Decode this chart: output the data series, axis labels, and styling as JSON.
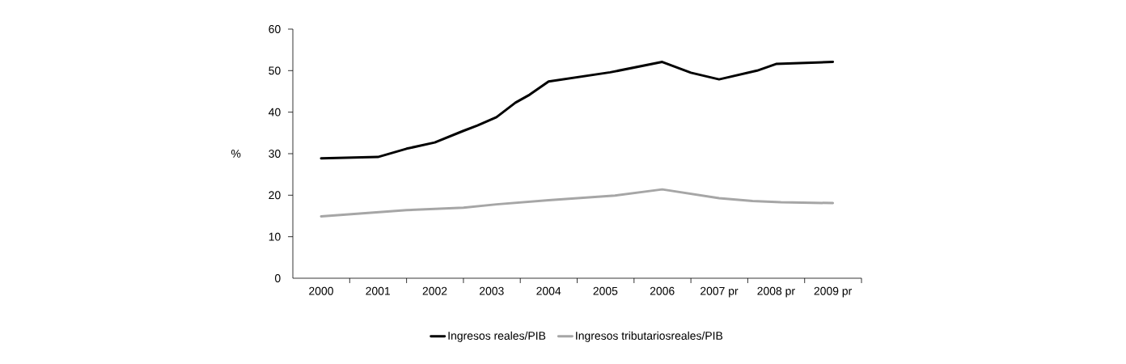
{
  "chart_data": {
    "type": "line",
    "ylabel": "%",
    "xlim": [
      "2000-01-01",
      "2010-01-01"
    ],
    "xticks": [
      {
        "value": "2000-07-01",
        "label": "2000"
      },
      {
        "value": "2001-07-01",
        "label": "2001"
      },
      {
        "value": "2002-07-01",
        "label": "2002"
      },
      {
        "value": "2003-07-01",
        "label": "2003"
      },
      {
        "value": "2004-07-01",
        "label": "2004"
      },
      {
        "value": "2005-07-01",
        "label": "2005"
      },
      {
        "value": "2006-07-01",
        "label": "2006"
      },
      {
        "value": "2007-07-01",
        "label": "2007 pr"
      },
      {
        "value": "2008-07-01",
        "label": "2008 pr"
      },
      {
        "value": "2009-07-01",
        "label": "2009 pr"
      },
      {
        "value": "2001-01-01",
        "label": null
      },
      {
        "value": "2002-01-01",
        "label": null
      },
      {
        "value": "2003-01-01",
        "label": null
      },
      {
        "value": "2004-01-01",
        "label": null
      },
      {
        "value": "2005-01-01",
        "label": null
      },
      {
        "value": "2006-01-01",
        "label": null
      },
      {
        "value": "2007-01-01",
        "label": null
      },
      {
        "value": "2008-01-01",
        "label": null
      },
      {
        "value": "2009-01-01",
        "label": null
      },
      {
        "value": "2010-01-01",
        "label": null
      }
    ],
    "ylim": [
      0,
      60
    ],
    "yticks": [
      0,
      10,
      20,
      30,
      40,
      50,
      60
    ],
    "legend": "bottom",
    "grid": false,
    "marker": "none",
    "line_style": "solid",
    "series": [
      {
        "name": "Ingresos reales/PIB",
        "color": "#000000",
        "x": [
          "2000-07-01",
          "2001-07-01",
          "2002-01-01",
          "2002-07-01",
          "2003-01-01",
          "2003-04-01",
          "2003-08-01",
          "2003-12-01",
          "2004-03-01",
          "2004-07-01",
          "2005-08-01",
          "2006-07-01",
          "2007-01-01",
          "2007-07-01",
          "2008-03-01",
          "2008-07-01",
          "2009-07-01"
        ],
        "values": [
          28.9,
          29.2,
          31.2,
          32.7,
          35.5,
          36.8,
          38.8,
          42.3,
          44.2,
          47.4,
          49.6,
          52.1,
          49.5,
          47.9,
          50.0,
          51.6,
          52.1
        ]
      },
      {
        "name": "Ingresos tributariosreales/PIB",
        "color": "#a6a6a6",
        "x": [
          "2000-07-01",
          "2002-01-01",
          "2003-01-01",
          "2003-08-01",
          "2004-07-01",
          "2005-09-01",
          "2006-07-01",
          "2007-07-01",
          "2008-02-01",
          "2008-08-01",
          "2009-07-01"
        ],
        "values": [
          14.9,
          16.4,
          17.0,
          17.8,
          18.8,
          19.9,
          21.4,
          19.3,
          18.6,
          18.3,
          18.1
        ]
      }
    ]
  }
}
